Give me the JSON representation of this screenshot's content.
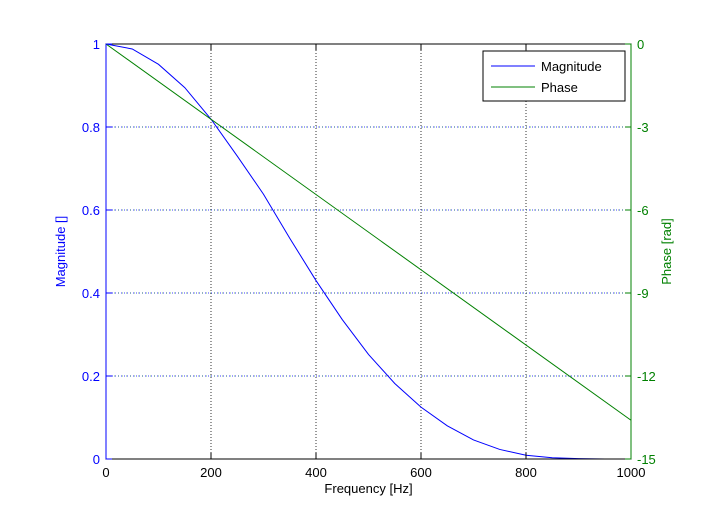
{
  "chart_data": {
    "type": "line",
    "title": "",
    "xlabel": "Frequency [Hz]",
    "ylabel_left": "Magnitude []",
    "ylabel_right": "Phase [rad]",
    "xlim": [
      0,
      1000
    ],
    "ylim_left": [
      0,
      1
    ],
    "ylim_right": [
      -15,
      0
    ],
    "x_ticks": [
      "0",
      "200",
      "400",
      "600",
      "800",
      "1000"
    ],
    "y_left_ticks": [
      "0",
      "0.2",
      "0.4",
      "0.6",
      "0.8",
      "1"
    ],
    "y_right_ticks": [
      "-15",
      "-12",
      "-9",
      "-6",
      "-3",
      "0"
    ],
    "grid": true,
    "legend_position": "top-right",
    "series": [
      {
        "name": "Magnitude",
        "axis": "left",
        "color": "#0000ff",
        "x": [
          0,
          50,
          100,
          150,
          200,
          250,
          300,
          350,
          400,
          450,
          500,
          550,
          600,
          650,
          700,
          750,
          800,
          850,
          900,
          950,
          1000
        ],
        "values": [
          1.0,
          0.988,
          0.951,
          0.895,
          0.819,
          0.73,
          0.638,
          0.532,
          0.43,
          0.336,
          0.252,
          0.182,
          0.125,
          0.08,
          0.046,
          0.023,
          0.009,
          0.003,
          0.001,
          0.0,
          0.0
        ]
      },
      {
        "name": "Phase",
        "axis": "right",
        "color": "#008000",
        "x": [
          0,
          1000
        ],
        "values": [
          0,
          -13.6
        ]
      }
    ]
  }
}
